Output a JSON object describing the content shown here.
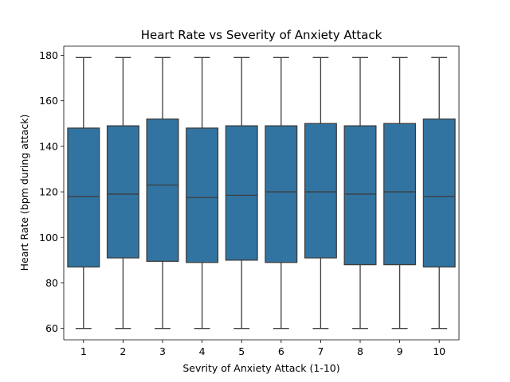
{
  "chart_data": {
    "type": "box",
    "title": "Heart Rate vs Severity of Anxiety Attack",
    "xlabel": "Sevrity of Anxiety Attack (1-10)",
    "ylabel": "Heart Rate (bpm during attack)",
    "categories": [
      "1",
      "2",
      "3",
      "4",
      "5",
      "6",
      "7",
      "8",
      "9",
      "10"
    ],
    "ylim": [
      55,
      184
    ],
    "yticks": [
      60,
      80,
      100,
      120,
      140,
      160,
      180
    ],
    "box_color": "#3274a1",
    "line_color": "#3d3d3d",
    "grid": false,
    "boxes": [
      {
        "min": 60,
        "q1": 87,
        "median": 118,
        "q3": 148,
        "max": 179
      },
      {
        "min": 60,
        "q1": 91,
        "median": 119,
        "q3": 149,
        "max": 179
      },
      {
        "min": 60,
        "q1": 89.5,
        "median": 123,
        "q3": 152,
        "max": 179
      },
      {
        "min": 60,
        "q1": 89,
        "median": 117.5,
        "q3": 148,
        "max": 179
      },
      {
        "min": 60,
        "q1": 90,
        "median": 118.5,
        "q3": 149,
        "max": 179
      },
      {
        "min": 60,
        "q1": 89,
        "median": 120,
        "q3": 149,
        "max": 179
      },
      {
        "min": 60,
        "q1": 91,
        "median": 120,
        "q3": 150,
        "max": 179
      },
      {
        "min": 60,
        "q1": 88,
        "median": 119,
        "q3": 149,
        "max": 179
      },
      {
        "min": 60,
        "q1": 88,
        "median": 120,
        "q3": 150,
        "max": 179
      },
      {
        "min": 60,
        "q1": 87,
        "median": 118,
        "q3": 152,
        "max": 179
      }
    ]
  }
}
